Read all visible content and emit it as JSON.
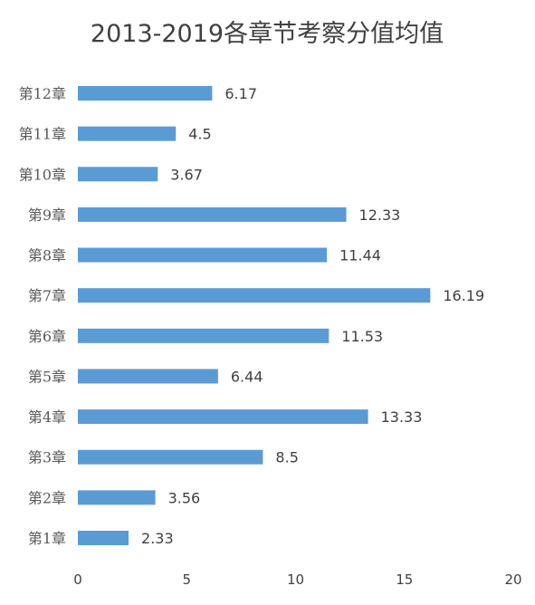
{
  "colors": {
    "bar": "#5b9bd5",
    "text": "#404040",
    "category_text": "#595959",
    "background": "#ffffff"
  },
  "chart_data": {
    "type": "bar",
    "orientation": "horizontal",
    "title": "2013-2019各章节考察分值均值",
    "categories": [
      "第12章",
      "第11章",
      "第10章",
      "第9章",
      "第8章",
      "第7章",
      "第6章",
      "第5章",
      "第4章",
      "第3章",
      "第2章",
      "第1章"
    ],
    "values": [
      6.17,
      4.5,
      3.67,
      12.33,
      11.44,
      16.19,
      11.53,
      6.44,
      13.33,
      8.5,
      3.56,
      2.33
    ],
    "data_labels": [
      "6.17",
      "4.5",
      "3.67",
      "12.33",
      "11.44",
      "16.19",
      "11.53",
      "6.44",
      "13.33",
      "8.5",
      "3.56",
      "2.33"
    ],
    "xlim": [
      0,
      20
    ],
    "x_ticks": [
      0,
      5,
      10,
      15,
      20
    ],
    "x_tick_labels": [
      "0",
      "5",
      "10",
      "15",
      "20"
    ],
    "xlabel": "",
    "ylabel": "",
    "grid": false,
    "legend": "none"
  }
}
